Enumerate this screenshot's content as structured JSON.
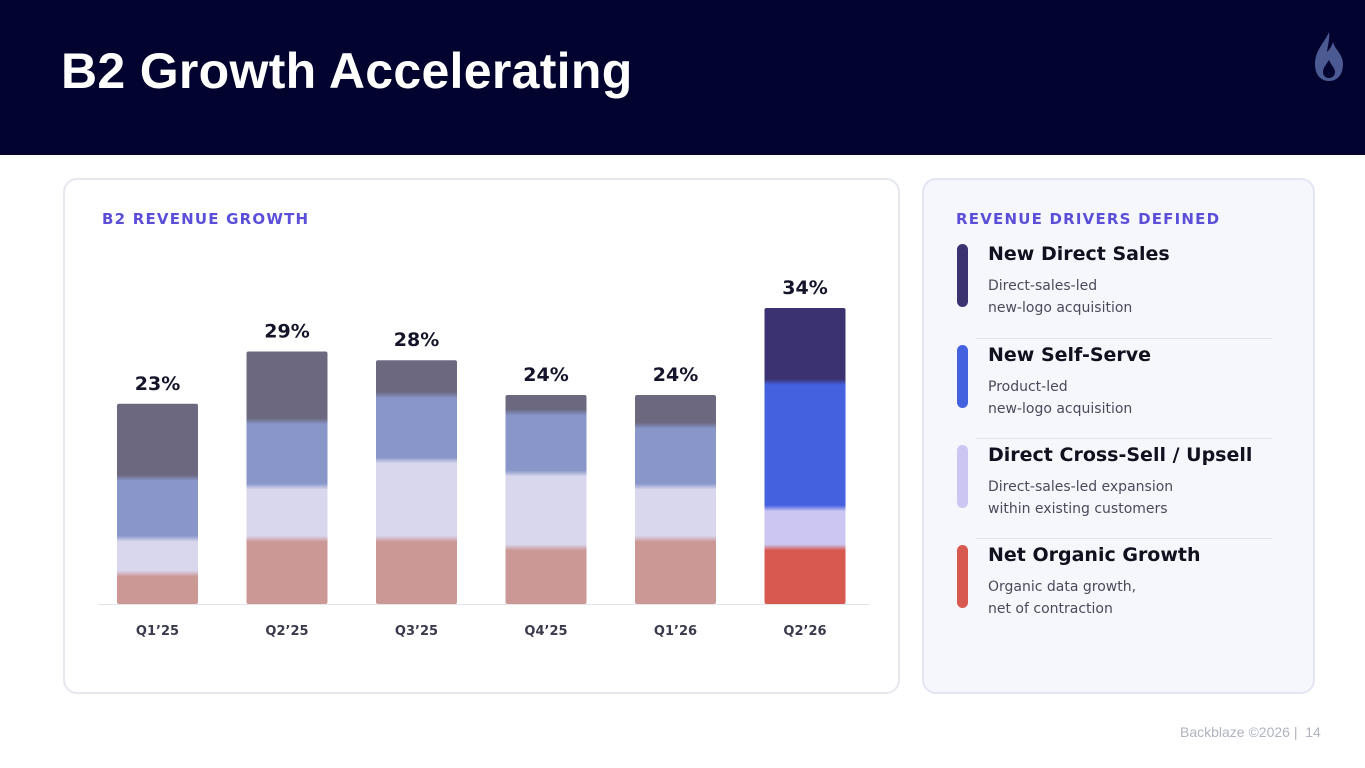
{
  "slide": {
    "title": "B2 Growth Accelerating",
    "footer_brand": "Backblaze ©2026 |",
    "page_number": "14"
  },
  "chart_card": {
    "heading": "B2 REVENUE GROWTH"
  },
  "legend_card": {
    "heading": "REVENUE DRIVERS DEFINED",
    "items": [
      {
        "name": "New Direct Sales",
        "line1": "Direct-sales-led",
        "line2": "new-logo acquisition",
        "color": "#3b3371"
      },
      {
        "name": "New Self-Serve",
        "line1": "Product-led",
        "line2": "new-logo acquisition",
        "color": "#4461e0"
      },
      {
        "name": "Direct Cross-Sell / Upsell",
        "line1": "Direct-sales-led expansion",
        "line2": "within existing customers",
        "color": "#cbc6f2"
      },
      {
        "name": "Net Organic Growth",
        "line1": "Organic data growth,",
        "line2": "net of contraction",
        "color": "#d8594f"
      }
    ]
  },
  "chart_data": {
    "type": "bar",
    "stacked": true,
    "categories": [
      "Q1’25",
      "Q2’25",
      "Q3’25",
      "Q4’25",
      "Q1’26",
      "Q2’26"
    ],
    "totals": [
      23,
      29,
      28,
      24,
      24,
      34
    ],
    "total_labels": [
      "23%",
      "29%",
      "28%",
      "24%",
      "24%",
      "34%"
    ],
    "unit": "%",
    "ylim": [
      0,
      34
    ],
    "highlight_index": 5,
    "series": [
      {
        "name": "Net Organic Growth",
        "values": [
          3.5,
          7.5,
          7.5,
          6.5,
          7.5,
          6.5
        ],
        "color": "#d8594f",
        "faded_color": "#cb9896"
      },
      {
        "name": "Direct Cross-Sell / Upsell",
        "values": [
          4,
          6,
          9,
          8.5,
          6,
          4.5
        ],
        "color": "#cbc6f2",
        "faded_color": "#d9d7ee"
      },
      {
        "name": "New Self-Serve",
        "values": [
          7,
          7.5,
          7.5,
          7,
          7,
          14.5
        ],
        "color": "#4461e0",
        "faded_color": "#8896c9"
      },
      {
        "name": "New Direct Sales",
        "values": [
          8.5,
          8,
          4,
          2,
          3.5,
          8.5
        ],
        "color": "#3b3371",
        "faded_color": "#6b6880"
      }
    ],
    "grid": false,
    "legend_position": "right panel"
  }
}
